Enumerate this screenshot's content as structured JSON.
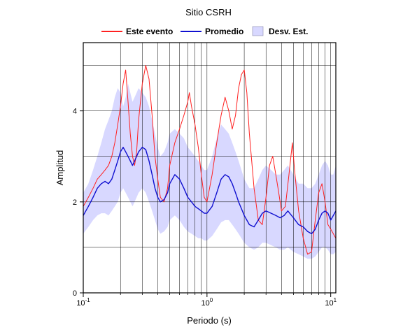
{
  "chart_data": {
    "type": "line",
    "title": "Sitio CSRH",
    "xlabel": "Periodo (s)",
    "ylabel": "Amplitud",
    "xscale": "log",
    "xlim": [
      0.1,
      11
    ],
    "ylim": [
      0,
      5.5
    ],
    "grid": true,
    "legend_position": "top-center",
    "legend": [
      {
        "label": "Este evento",
        "kind": "line",
        "color": "#ff2020"
      },
      {
        "label": "Promedio",
        "kind": "line",
        "color": "#1010d0"
      },
      {
        "label": "Desv. Est.",
        "kind": "band",
        "color": "#d8d8ff"
      }
    ],
    "y_ticks": [
      {
        "value": 0,
        "label": "0"
      },
      {
        "value": 2,
        "label": "2"
      },
      {
        "value": 4,
        "label": "4"
      }
    ],
    "x_ticks": [
      {
        "value": 0.1,
        "base": "10",
        "exp": "-1"
      },
      {
        "value": 1,
        "base": "10",
        "exp": "0"
      },
      {
        "value": 10,
        "base": "10",
        "exp": "1"
      }
    ],
    "series": [
      {
        "name": "Este evento",
        "color": "#ff2020",
        "x": [
          0.1,
          0.11,
          0.12,
          0.13,
          0.14,
          0.15,
          0.16,
          0.17,
          0.18,
          0.19,
          0.2,
          0.21,
          0.22,
          0.23,
          0.24,
          0.25,
          0.26,
          0.27,
          0.28,
          0.3,
          0.32,
          0.34,
          0.36,
          0.38,
          0.4,
          0.42,
          0.45,
          0.48,
          0.5,
          0.55,
          0.6,
          0.65,
          0.7,
          0.72,
          0.75,
          0.8,
          0.85,
          0.9,
          0.95,
          1.0,
          1.1,
          1.2,
          1.3,
          1.4,
          1.5,
          1.6,
          1.7,
          1.8,
          1.9,
          2.0,
          2.1,
          2.2,
          2.4,
          2.6,
          2.8,
          3.0,
          3.2,
          3.4,
          3.6,
          3.8,
          4.0,
          4.3,
          4.6,
          4.9,
          5.1,
          5.5,
          6.0,
          6.5,
          7.0,
          7.5,
          8.0,
          8.5,
          9.0,
          9.5,
          10.0,
          10.5,
          11.0
        ],
        "y": [
          1.9,
          2.1,
          2.3,
          2.5,
          2.6,
          2.7,
          2.8,
          3.0,
          3.3,
          3.7,
          4.1,
          4.6,
          4.9,
          4.2,
          3.5,
          3.0,
          2.8,
          3.1,
          3.8,
          4.6,
          5.0,
          4.7,
          3.9,
          3.0,
          2.5,
          2.1,
          2.0,
          2.3,
          2.8,
          3.3,
          3.6,
          3.9,
          4.2,
          4.4,
          4.1,
          3.7,
          3.2,
          2.6,
          2.1,
          2.0,
          2.6,
          3.3,
          3.9,
          4.3,
          4.0,
          3.6,
          3.9,
          4.5,
          4.8,
          4.9,
          4.4,
          3.5,
          2.3,
          1.6,
          1.5,
          2.1,
          2.8,
          3.0,
          2.6,
          2.2,
          1.8,
          1.9,
          2.6,
          3.3,
          2.7,
          1.8,
          1.2,
          0.85,
          0.9,
          1.6,
          2.2,
          2.4,
          2.0,
          1.5,
          1.4,
          1.3,
          1.2
        ]
      },
      {
        "name": "Promedio",
        "color": "#1010d0",
        "x": [
          0.1,
          0.11,
          0.12,
          0.13,
          0.14,
          0.15,
          0.16,
          0.17,
          0.18,
          0.19,
          0.2,
          0.21,
          0.22,
          0.23,
          0.24,
          0.25,
          0.26,
          0.27,
          0.28,
          0.3,
          0.32,
          0.34,
          0.36,
          0.38,
          0.4,
          0.42,
          0.45,
          0.48,
          0.5,
          0.55,
          0.6,
          0.65,
          0.7,
          0.75,
          0.8,
          0.85,
          0.9,
          0.95,
          1.0,
          1.1,
          1.2,
          1.3,
          1.4,
          1.5,
          1.6,
          1.7,
          1.8,
          1.9,
          2.0,
          2.2,
          2.4,
          2.6,
          2.8,
          3.0,
          3.3,
          3.6,
          3.9,
          4.2,
          4.5,
          5.0,
          5.5,
          6.0,
          6.5,
          7.0,
          7.5,
          8.0,
          8.5,
          9.0,
          9.5,
          10.0,
          10.5,
          11.0
        ],
        "y": [
          1.7,
          1.9,
          2.1,
          2.3,
          2.4,
          2.45,
          2.4,
          2.5,
          2.7,
          2.9,
          3.1,
          3.2,
          3.1,
          3.0,
          2.9,
          2.8,
          2.9,
          3.0,
          3.1,
          3.2,
          3.15,
          2.9,
          2.6,
          2.3,
          2.1,
          2.0,
          2.05,
          2.2,
          2.4,
          2.6,
          2.5,
          2.3,
          2.1,
          2.0,
          1.9,
          1.85,
          1.8,
          1.75,
          1.75,
          1.9,
          2.2,
          2.5,
          2.6,
          2.55,
          2.4,
          2.2,
          2.0,
          1.85,
          1.7,
          1.5,
          1.45,
          1.6,
          1.75,
          1.8,
          1.75,
          1.7,
          1.65,
          1.7,
          1.8,
          1.65,
          1.5,
          1.45,
          1.35,
          1.3,
          1.4,
          1.6,
          1.75,
          1.8,
          1.75,
          1.6,
          1.7,
          1.8
        ]
      },
      {
        "name": "Desv. Est.",
        "color": "#d8d8ff",
        "x": [
          0.1,
          0.11,
          0.12,
          0.13,
          0.14,
          0.15,
          0.16,
          0.17,
          0.18,
          0.19,
          0.2,
          0.21,
          0.22,
          0.23,
          0.24,
          0.25,
          0.26,
          0.27,
          0.28,
          0.3,
          0.32,
          0.34,
          0.36,
          0.38,
          0.4,
          0.42,
          0.45,
          0.48,
          0.5,
          0.55,
          0.6,
          0.65,
          0.7,
          0.75,
          0.8,
          0.85,
          0.9,
          0.95,
          1.0,
          1.1,
          1.2,
          1.3,
          1.4,
          1.5,
          1.6,
          1.7,
          1.8,
          1.9,
          2.0,
          2.2,
          2.4,
          2.6,
          2.8,
          3.0,
          3.3,
          3.6,
          3.9,
          4.2,
          4.5,
          5.0,
          5.5,
          6.0,
          6.5,
          7.0,
          7.5,
          8.0,
          8.5,
          9.0,
          9.5,
          10.0,
          10.5,
          11.0
        ],
        "upper": [
          2.2,
          2.4,
          2.7,
          3.0,
          3.3,
          3.6,
          3.8,
          4.0,
          4.3,
          4.5,
          4.4,
          4.1,
          4.3,
          4.6,
          4.4,
          4.2,
          4.3,
          4.4,
          4.5,
          4.4,
          4.3,
          4.1,
          3.8,
          3.5,
          3.2,
          3.0,
          3.1,
          3.3,
          3.5,
          3.6,
          3.5,
          3.4,
          3.2,
          3.1,
          3.0,
          2.9,
          2.8,
          2.7,
          2.7,
          3.0,
          3.4,
          3.7,
          3.6,
          3.5,
          3.3,
          3.1,
          2.9,
          2.7,
          2.5,
          2.3,
          2.3,
          2.5,
          2.7,
          2.8,
          2.7,
          2.6,
          2.6,
          2.7,
          2.8,
          2.6,
          2.4,
          2.4,
          2.3,
          2.3,
          2.4,
          2.6,
          2.8,
          2.9,
          2.8,
          2.6,
          2.6,
          2.8
        ],
        "lower": [
          1.3,
          1.45,
          1.6,
          1.7,
          1.75,
          1.75,
          1.7,
          1.8,
          1.9,
          2.0,
          2.2,
          2.3,
          2.2,
          2.1,
          2.0,
          1.9,
          2.0,
          2.1,
          2.2,
          2.3,
          2.2,
          2.0,
          1.8,
          1.6,
          1.4,
          1.3,
          1.35,
          1.45,
          1.6,
          1.7,
          1.6,
          1.45,
          1.35,
          1.3,
          1.25,
          1.2,
          1.2,
          1.15,
          1.15,
          1.25,
          1.4,
          1.55,
          1.6,
          1.6,
          1.5,
          1.4,
          1.3,
          1.2,
          1.1,
          1.0,
          0.95,
          1.0,
          1.1,
          1.1,
          1.05,
          1.0,
          0.95,
          0.95,
          1.0,
          0.9,
          0.85,
          0.8,
          0.75,
          0.75,
          0.8,
          0.9,
          1.0,
          1.0,
          0.95,
          0.85,
          0.85,
          0.9
        ]
      }
    ]
  }
}
